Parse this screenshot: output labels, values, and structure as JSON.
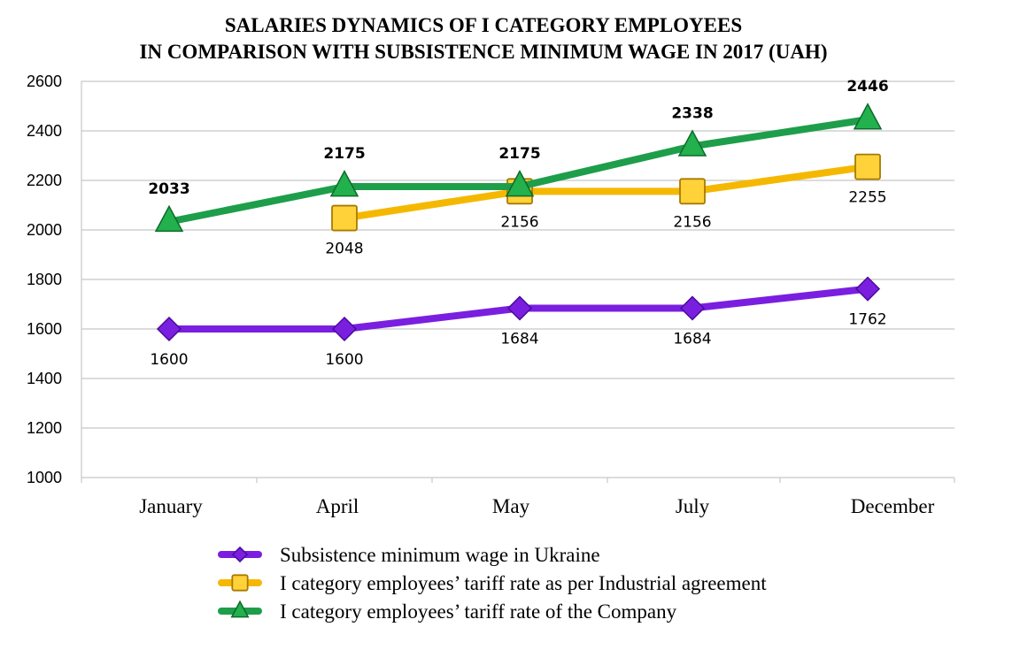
{
  "chart_data": {
    "type": "line",
    "title_line1": "SALARIES DYNAMICS OF I CATEGORY EMPLOYEES",
    "title_line2": "IN COMPARISON WITH SUBSISTENCE MINIMUM WAGE IN 2017 (UAH)",
    "categories": [
      "January",
      "April",
      "May",
      "July",
      "December"
    ],
    "ylim": [
      1000,
      2600
    ],
    "yticks": [
      1000,
      1200,
      1400,
      1600,
      1800,
      2000,
      2200,
      2400,
      2600
    ],
    "grid": true,
    "legend_position": "bottom",
    "series": [
      {
        "name": "Subsistence minimum wage in Ukraine",
        "values": [
          1600,
          1600,
          1684,
          1684,
          1762
        ],
        "labels": [
          "1600",
          "1600",
          "1684",
          "1684",
          "1762"
        ],
        "color": "#7a1fe0",
        "marker": "diamond"
      },
      {
        "name": "I category employees’ tariff rate as per Industrial agreement",
        "values": [
          null,
          2048,
          2156,
          2156,
          2255
        ],
        "labels": [
          "",
          "2048",
          "2156",
          "2156",
          "2255"
        ],
        "color": "#f5b800",
        "marker": "square"
      },
      {
        "name": "I category employees’ tariff rate of the Company",
        "values": [
          2033,
          2175,
          2175,
          2338,
          2446
        ],
        "labels": [
          "2033",
          "2175",
          "2175",
          "2338",
          "2446"
        ],
        "color": "#1e9e4a",
        "marker": "triangle"
      }
    ]
  }
}
